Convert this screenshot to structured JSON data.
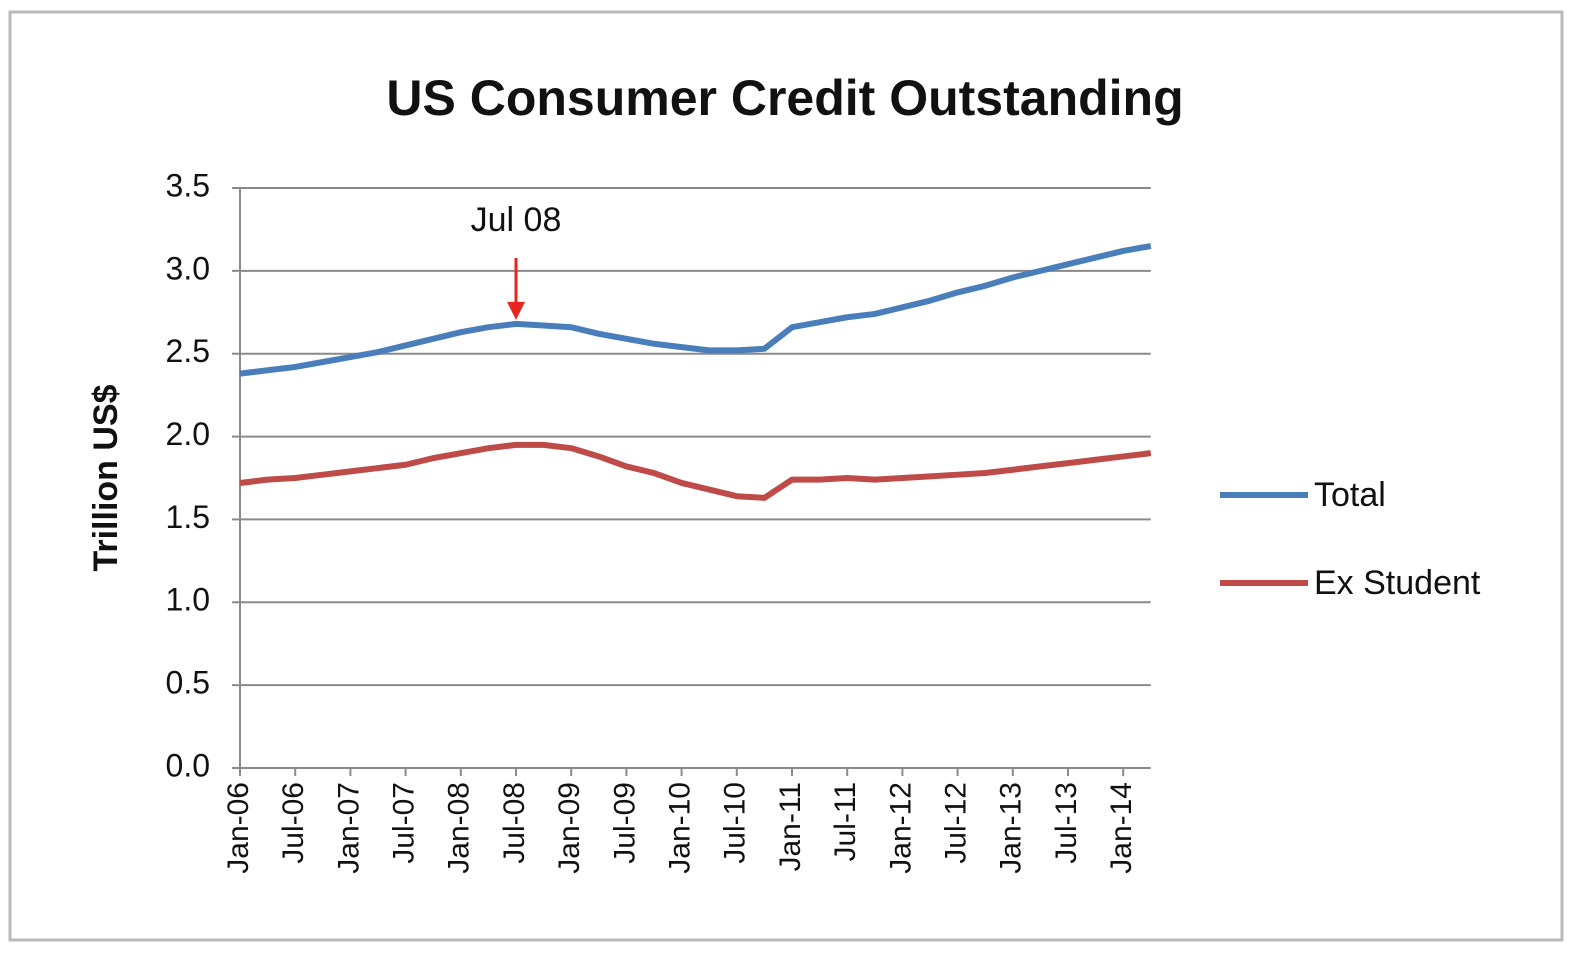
{
  "chart_data": {
    "type": "line",
    "title": "US Consumer Credit Outstanding",
    "y_label": "Trillion US$",
    "annotation": {
      "text": "Jul 08",
      "color": "#e8261f",
      "category": "Jul-08"
    },
    "categories": [
      "Jan-06",
      null,
      "Jul-06",
      null,
      "Jan-07",
      null,
      "Jul-07",
      null,
      "Jan-08",
      null,
      "Jul-08",
      null,
      "Jan-09",
      null,
      "Jul-09",
      null,
      "Jan-10",
      null,
      "Jul-10",
      null,
      "Jan-11",
      null,
      "Jul-11",
      null,
      "Jan-12",
      null,
      "Jul-12",
      null,
      "Jan-13",
      null,
      "Jul-13",
      null,
      "Jan-14",
      null
    ],
    "series": [
      {
        "name": "Total",
        "color": "#4a7ebb",
        "values": [
          2.38,
          2.4,
          2.42,
          2.45,
          2.48,
          2.51,
          2.55,
          2.59,
          2.63,
          2.66,
          2.68,
          2.67,
          2.66,
          2.62,
          2.59,
          2.56,
          2.54,
          2.52,
          2.52,
          2.53,
          2.66,
          2.69,
          2.72,
          2.74,
          2.78,
          2.82,
          2.87,
          2.91,
          2.96,
          3.0,
          3.04,
          3.08,
          3.12,
          3.15
        ]
      },
      {
        "name": "Ex Student",
        "color": "#be4b48",
        "values": [
          1.72,
          1.74,
          1.75,
          1.77,
          1.79,
          1.81,
          1.83,
          1.87,
          1.9,
          1.93,
          1.95,
          1.95,
          1.93,
          1.88,
          1.82,
          1.78,
          1.72,
          1.68,
          1.64,
          1.63,
          1.74,
          1.74,
          1.75,
          1.74,
          1.75,
          1.76,
          1.77,
          1.78,
          1.8,
          1.82,
          1.84,
          1.86,
          1.88,
          1.9
        ]
      }
    ],
    "ylim": [
      0,
      3.5
    ],
    "yticks": [
      {
        "value": 0,
        "label": "0.0"
      },
      0.5,
      {
        "value": 1,
        "label": "1.0"
      },
      1.5,
      {
        "value": 2,
        "label": "2.0"
      },
      2.5,
      {
        "value": 3,
        "label": "3.0"
      },
      3.5
    ],
    "grid": true,
    "legend": "right"
  }
}
